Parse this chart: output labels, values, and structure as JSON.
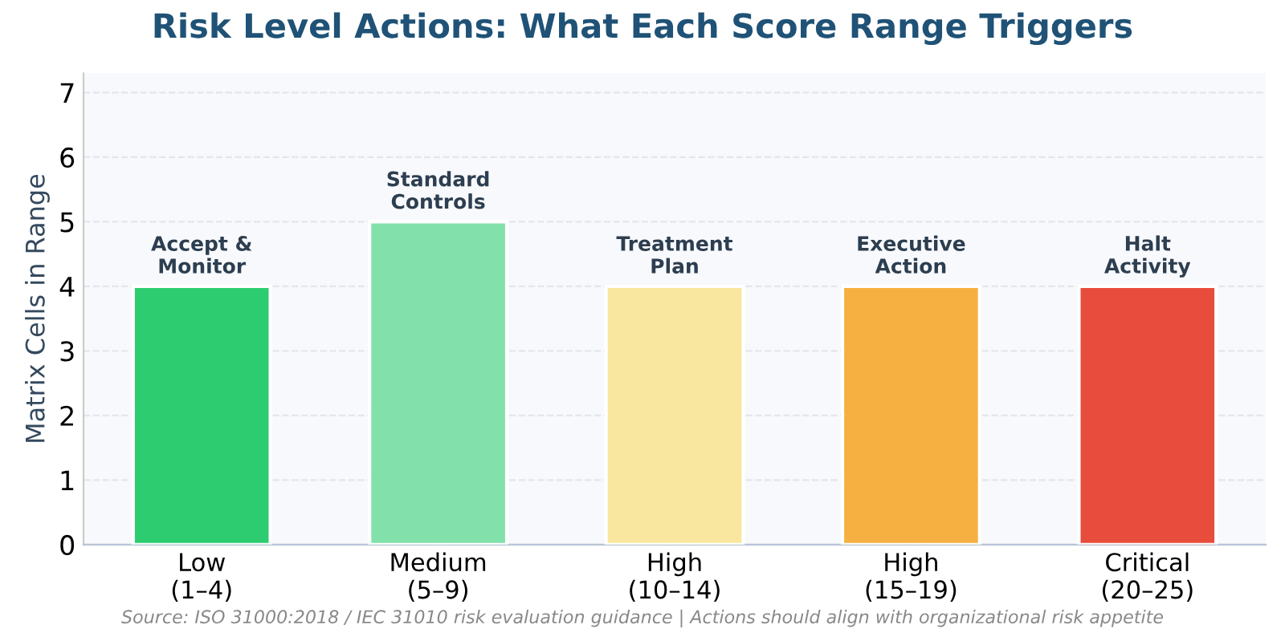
{
  "chart_data": {
    "type": "bar",
    "title": "Risk Level Actions: What Each Score Range Triggers",
    "ylabel": "Matrix Cells in Range",
    "categories": [
      "Low\n(1–4)",
      "Medium\n(5–9)",
      "High\n(10–14)",
      "High\n(15–19)",
      "Critical\n(20–25)"
    ],
    "values": [
      4,
      5,
      4,
      4,
      4
    ],
    "colors": [
      "#2ecc71",
      "#82e0aa",
      "#f9e79f",
      "#f5b041",
      "#e74c3c"
    ],
    "ylim": [
      0,
      7.3
    ],
    "yticks": [
      0,
      1,
      2,
      3,
      4,
      5,
      6,
      7
    ],
    "grid": "y",
    "annotations": [
      {
        "text": "Accept &\nMonitor",
        "x": "Low\n(1–4)",
        "y": 4
      },
      {
        "text": "Standard\nControls",
        "x": "Medium\n(5–9)",
        "y": 5
      },
      {
        "text": "Treatment\nPlan",
        "x": "High\n(10–14)",
        "y": 4
      },
      {
        "text": "Executive\nAction",
        "x": "High\n(15–19)",
        "y": 4
      },
      {
        "text": "Halt\nActivity",
        "x": "Critical\n(20–25)",
        "y": 4
      },
      "Source: ISO 31000:2018 / IEC 31010 risk evaluation guidance | Actions should align with organizational risk appetite"
    ]
  }
}
